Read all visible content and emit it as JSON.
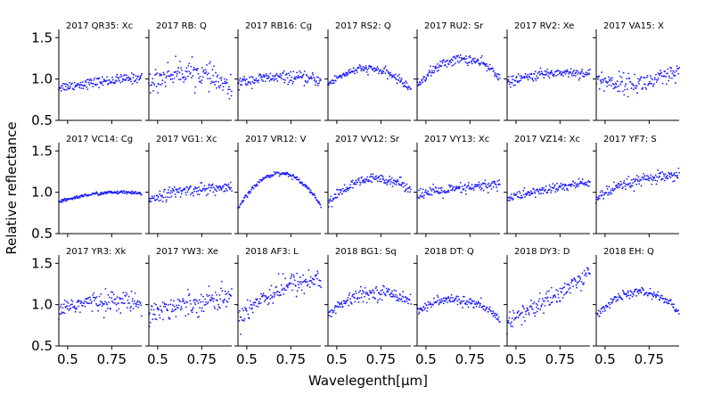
{
  "chart_data": {
    "type": "scatter",
    "xlabel": "Wavelegenth[μm]",
    "ylabel": "Relative reflectance",
    "xlim": [
      0.45,
      0.92
    ],
    "ylim": [
      0.5,
      1.6
    ],
    "xticks": [
      0.5,
      0.75
    ],
    "xtick_labels": [
      "0.5",
      "0.75"
    ],
    "yticks": [
      0.5,
      1.0,
      1.5
    ],
    "ytick_labels": [
      "0.5",
      "1.0",
      "1.5"
    ],
    "series_color": "#1a1aff",
    "panels": [
      {
        "title": "2017 QR35: Xc",
        "start": 0.9,
        "mid": 0.97,
        "end": 1.02,
        "noise": 0.03
      },
      {
        "title": "2017 RB: Q",
        "start": 0.93,
        "mid": 1.08,
        "end": 0.85,
        "noise": 0.07
      },
      {
        "title": "2017 RB16: Cg",
        "start": 0.95,
        "mid": 1.02,
        "end": 0.98,
        "noise": 0.035
      },
      {
        "title": "2017 RS2: Q",
        "start": 0.93,
        "mid": 1.12,
        "end": 0.88,
        "noise": 0.025
      },
      {
        "title": "2017 RU2: Sr",
        "start": 0.92,
        "mid": 1.24,
        "end": 1.03,
        "noise": 0.03
      },
      {
        "title": "2017 RV2: Xe",
        "start": 0.95,
        "mid": 1.07,
        "end": 1.06,
        "noise": 0.03
      },
      {
        "title": "2017 VA15: X",
        "start": 1.0,
        "mid": 0.95,
        "end": 1.08,
        "noise": 0.06
      },
      {
        "title": "2017 VC14: Cg",
        "start": 0.88,
        "mid": 0.99,
        "end": 0.98,
        "noise": 0.01
      },
      {
        "title": "2017 VG1: Xc",
        "start": 0.92,
        "mid": 1.03,
        "end": 1.04,
        "noise": 0.035
      },
      {
        "title": "2017 VR12: V",
        "start": 0.8,
        "mid": 1.23,
        "end": 0.84,
        "noise": 0.012
      },
      {
        "title": "2017 VV12: Sr",
        "start": 0.87,
        "mid": 1.16,
        "end": 1.04,
        "noise": 0.03
      },
      {
        "title": "2017 VY13: Xc",
        "start": 0.98,
        "mid": 1.04,
        "end": 1.1,
        "noise": 0.035
      },
      {
        "title": "2017 VZ14: Xc",
        "start": 0.93,
        "mid": 1.04,
        "end": 1.12,
        "noise": 0.03
      },
      {
        "title": "2017 YF7: S",
        "start": 0.93,
        "mid": 1.14,
        "end": 1.18,
        "noise": 0.035
      },
      {
        "title": "2017 YR3: Xk",
        "start": 0.95,
        "mid": 1.04,
        "end": 1.02,
        "noise": 0.06
      },
      {
        "title": "2017 YW3: Xe",
        "start": 0.9,
        "mid": 1.02,
        "end": 1.1,
        "noise": 0.07
      },
      {
        "title": "2018 AF3: L",
        "start": 0.85,
        "mid": 1.2,
        "end": 1.3,
        "noise": 0.07
      },
      {
        "title": "2018 BG1: Sq",
        "start": 0.88,
        "mid": 1.14,
        "end": 1.05,
        "noise": 0.04
      },
      {
        "title": "2018 DT: Q",
        "start": 0.92,
        "mid": 1.05,
        "end": 0.82,
        "noise": 0.03
      },
      {
        "title": "2018 DY3: D",
        "start": 0.8,
        "mid": 1.08,
        "end": 1.38,
        "noise": 0.06
      },
      {
        "title": "2018 EH: Q",
        "start": 0.87,
        "mid": 1.15,
        "end": 0.92,
        "noise": 0.025
      }
    ]
  }
}
